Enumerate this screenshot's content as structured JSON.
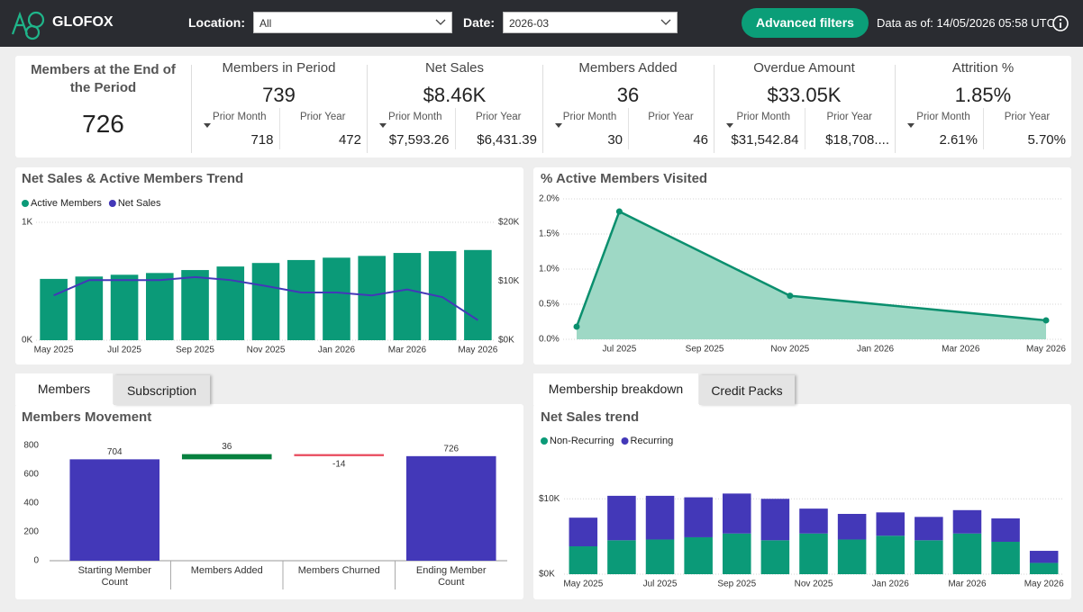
{
  "header": {
    "logo": "GLOFOX",
    "location_label": "Location:",
    "location_value": "All",
    "date_label": "Date:",
    "date_value": "2026-03",
    "button": "Advanced filters",
    "data_as_of": "Data as of: 14/05/2026 05:58 UTC"
  },
  "kpis": [
    {
      "title": "Members at the End of the Period",
      "value": "726"
    },
    {
      "title": "Members in Period",
      "value": "739",
      "prior_month_label": "Prior Month",
      "prior_month": "718",
      "prior_year_label": "Prior Year",
      "prior_year": "472"
    },
    {
      "title": "Net Sales",
      "value": "$8.46K",
      "prior_month_label": "Prior Month",
      "prior_month": "$7,593.26",
      "prior_year_label": "Prior Year",
      "prior_year": "$6,431.39"
    },
    {
      "title": "Members Added",
      "value": "36",
      "prior_month_label": "Prior Month",
      "prior_month": "30",
      "prior_year_label": "Prior Year",
      "prior_year": "46"
    },
    {
      "title": "Overdue Amount",
      "value": "$33.05K",
      "prior_month_label": "Prior Month",
      "prior_month": "$31,542.84",
      "prior_year_label": "Prior Year",
      "prior_year": "$18,708...."
    },
    {
      "title": "Attrition %",
      "value": "1.85%",
      "prior_month_label": "Prior Month",
      "prior_month": "2.61%",
      "prior_year_label": "Prior Year",
      "prior_year": "5.70%"
    }
  ],
  "tabs_left": [
    "Members",
    "Subscription"
  ],
  "tabs_right": [
    "Membership breakdown",
    "Credit Packs"
  ],
  "chart_data": [
    {
      "type": "combo",
      "title": "Net Sales & Active Members Trend",
      "categories": [
        "May 2025",
        null,
        "Jul 2025",
        null,
        "Sep 2025",
        null,
        "Nov 2025",
        null,
        "Jan 2026",
        null,
        "Mar 2026",
        null,
        "May 2026"
      ],
      "series": [
        {
          "name": "Active Members",
          "color": "#0b9a78",
          "type": "bar",
          "values": [
            520,
            540,
            555,
            570,
            595,
            625,
            655,
            680,
            700,
            715,
            740,
            755,
            765
          ]
        },
        {
          "name": "Net Sales",
          "color": "#4338b8",
          "type": "line",
          "axis": "y2",
          "values": [
            7600,
            10200,
            10200,
            10200,
            10700,
            10200,
            9200,
            8100,
            8100,
            7600,
            8600,
            7300,
            3400
          ]
        }
      ],
      "ylim": [
        0,
        1000
      ],
      "yticks": [
        {
          "value": 0,
          "label": "0K"
        },
        {
          "value": 1000,
          "label": "1K"
        }
      ],
      "y2lim": [
        0,
        20000
      ],
      "y2ticks": [
        {
          "value": 0,
          "label": "$0K"
        },
        {
          "value": 10000,
          "label": "$10K"
        },
        {
          "value": 20000,
          "label": "$20K"
        }
      ],
      "grid": true,
      "legend": "top-left"
    },
    {
      "type": "area",
      "title": "% Active Members Visited",
      "x": [
        "2025-06",
        "2025-07",
        "2025-11",
        "2026-05"
      ],
      "values": [
        0.18,
        1.82,
        0.62,
        0.27
      ],
      "color": "#0a8f6e",
      "fill": "#9ed8c5",
      "xlim": [
        "2025-06",
        "2026-05"
      ],
      "xticks": [
        {
          "value": "2025-07",
          "label": "Jul 2025"
        },
        {
          "value": "2025-09",
          "label": "Sep 2025"
        },
        {
          "value": "2025-11",
          "label": "Nov 2025"
        },
        {
          "value": "2026-01",
          "label": "Jan 2026"
        },
        {
          "value": "2026-03",
          "label": "Mar 2026"
        },
        {
          "value": "2026-05",
          "label": "May 2026"
        }
      ],
      "ylim": [
        0,
        2
      ],
      "yticks": [
        {
          "value": 0,
          "label": "0.0%"
        },
        {
          "value": 0.5,
          "label": "0.5%"
        },
        {
          "value": 1,
          "label": "1.0%"
        },
        {
          "value": 1.5,
          "label": "1.5%"
        },
        {
          "value": 2,
          "label": "2.0%"
        }
      ],
      "grid": true
    },
    {
      "type": "waterfall",
      "title": "Members Movement",
      "categories": [
        "Starting Member Count",
        "Members Added",
        "Members Churned",
        "Ending Member Count"
      ],
      "measures": [
        "absolute",
        "relative",
        "relative",
        "total"
      ],
      "values": [
        704,
        36,
        -14,
        726
      ],
      "total_color": "#4338b8",
      "increasing_color": "#07813f",
      "decreasing_color": "#e8475a",
      "ylim": [
        0,
        800
      ],
      "yticks": [
        0,
        200,
        400,
        600,
        800
      ]
    },
    {
      "type": "stacked-bar",
      "title": "Net Sales trend",
      "categories": [
        "May 2025",
        null,
        "Jul 2025",
        null,
        "Sep 2025",
        null,
        "Nov 2025",
        null,
        "Jan 2026",
        null,
        "Mar 2026",
        null,
        "May 2026"
      ],
      "series": [
        {
          "name": "Non-Recurring",
          "color": "#0b9a78",
          "values": [
            3700,
            4500,
            4600,
            4900,
            5400,
            4500,
            5400,
            4600,
            5100,
            4500,
            5400,
            4300,
            1500
          ]
        },
        {
          "name": "Recurring",
          "color": "#4338b8",
          "values": [
            3800,
            5900,
            5800,
            5300,
            5300,
            5500,
            3300,
            3400,
            3100,
            3100,
            3100,
            3100,
            1600
          ]
        }
      ],
      "ylim": [
        0,
        16000
      ],
      "yticks": [
        {
          "value": 0,
          "label": "$0K"
        },
        {
          "value": 10000,
          "label": "$10K"
        }
      ],
      "grid": true,
      "legend": "top-left"
    }
  ]
}
